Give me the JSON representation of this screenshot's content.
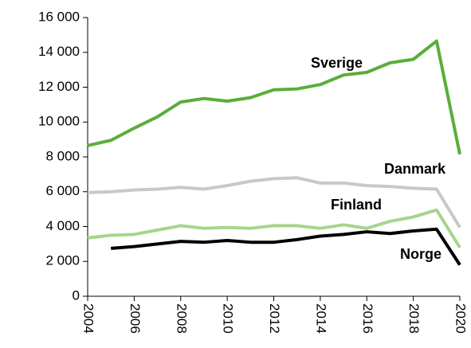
{
  "chart_data": {
    "type": "line",
    "x": [
      2004,
      2005,
      2006,
      2007,
      2008,
      2009,
      2010,
      2011,
      2012,
      2013,
      2014,
      2015,
      2016,
      2017,
      2018,
      2019,
      2020
    ],
    "series": [
      {
        "name": "Sverige",
        "color": "#5aad3a",
        "values": [
          8650,
          8950,
          9650,
          10300,
          11150,
          11350,
          11200,
          11400,
          11850,
          11900,
          12150,
          12700,
          12850,
          13400,
          13600,
          14650,
          8150
        ]
      },
      {
        "name": "Danmark",
        "color": "#c8c8c8",
        "values": [
          5950,
          6000,
          6100,
          6150,
          6250,
          6150,
          6350,
          6600,
          6750,
          6800,
          6500,
          6500,
          6350,
          6300,
          6200,
          6150,
          3950
        ]
      },
      {
        "name": "Finland",
        "color": "#a6d58a",
        "values": [
          3350,
          3500,
          3550,
          3800,
          4050,
          3900,
          3950,
          3900,
          4050,
          4050,
          3900,
          4100,
          3900,
          4300,
          4550,
          4950,
          2800
        ]
      },
      {
        "name": "Norge",
        "color": "#000000",
        "values": [
          null,
          2750,
          2850,
          3000,
          3150,
          3100,
          3200,
          3100,
          3100,
          3250,
          3450,
          3550,
          3700,
          3600,
          3750,
          3850,
          1800
        ]
      }
    ],
    "xlim": [
      2004,
      2020
    ],
    "xticks": [
      2004,
      2006,
      2008,
      2010,
      2012,
      2014,
      2016,
      2018,
      2020
    ],
    "ylim": [
      0,
      16000
    ],
    "yticks": [
      0,
      {
        "value": 2000,
        "label": "2 000"
      },
      {
        "value": 4000,
        "label": "4 000"
      },
      {
        "value": 6000,
        "label": "6 000"
      },
      {
        "value": 8000,
        "label": "8 000"
      },
      {
        "value": 10000,
        "label": "10 000"
      },
      {
        "value": 12000,
        "label": "12 000"
      },
      {
        "value": 14000,
        "label": "14 000"
      },
      {
        "value": 16000,
        "label": "16 000"
      }
    ]
  }
}
